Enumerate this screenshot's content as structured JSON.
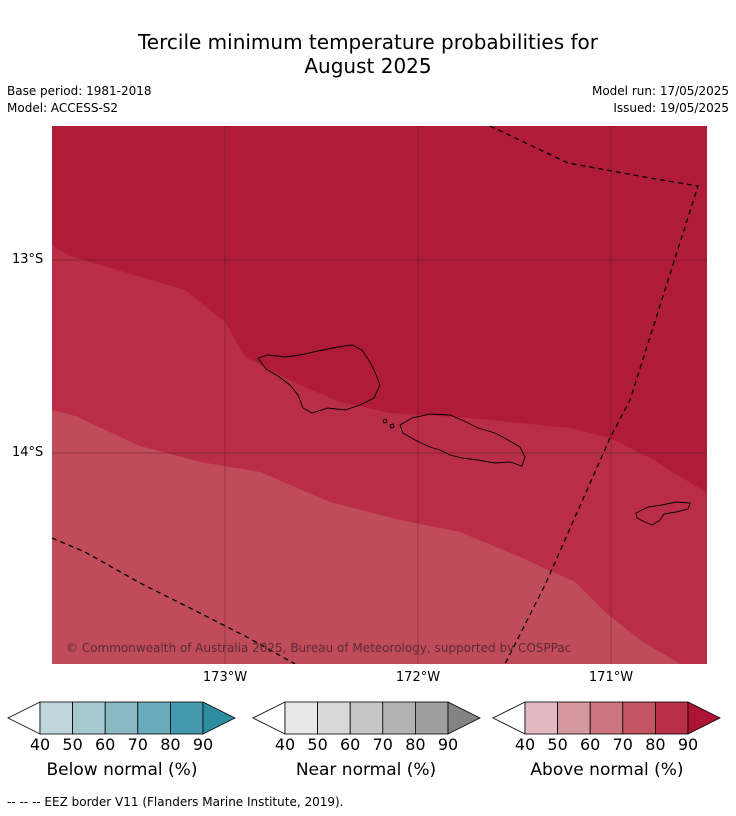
{
  "title": {
    "line1": "Tercile minimum temperature probabilities for",
    "line2": "August 2025"
  },
  "meta": {
    "base_period": "Base period: 1981-2018",
    "model": "Model: ACCESS-S2",
    "model_run": "Model run: 17/05/2025",
    "issued": "Issued: 19/05/2025"
  },
  "map": {
    "lat_labels": [
      "13°S",
      "14°S"
    ],
    "lon_labels": [
      "173°W",
      "172°W",
      "171°W"
    ],
    "copyright": "© Commonwealth of Australia 2025, Bureau of Meteorology, supported by COSPPac",
    "colors": {
      "above_90": "#b01c38",
      "above_80": "#b92d47",
      "above_70": "#c04c59",
      "grid": "#4a1a20",
      "eez": "#000000"
    }
  },
  "colorbars": [
    {
      "title": "Below normal (%)",
      "ticks": [
        "40",
        "50",
        "60",
        "70",
        "80",
        "90"
      ],
      "colors": [
        "#ffffff",
        "#bfd6dd",
        "#a6c9cf",
        "#89b7c2",
        "#6aabbb",
        "#4499ae",
        "#2e8ca3"
      ]
    },
    {
      "title": "Near normal (%)",
      "ticks": [
        "40",
        "50",
        "60",
        "70",
        "80",
        "90"
      ],
      "colors": [
        "#ffffff",
        "#e8e8e8",
        "#d9d9d9",
        "#c6c6c6",
        "#b3b3b3",
        "#9e9e9e",
        "#838383"
      ]
    },
    {
      "title": "Above normal (%)",
      "ticks": [
        "40",
        "50",
        "60",
        "70",
        "80",
        "90"
      ],
      "colors": [
        "#ffffff",
        "#e2b9c0",
        "#d5969f",
        "#cc7580",
        "#c35563",
        "#b92f48",
        "#ac1334"
      ]
    }
  ],
  "footer": "--  --  -- EEZ border V11 (Flanders Marine Institute, 2019)."
}
